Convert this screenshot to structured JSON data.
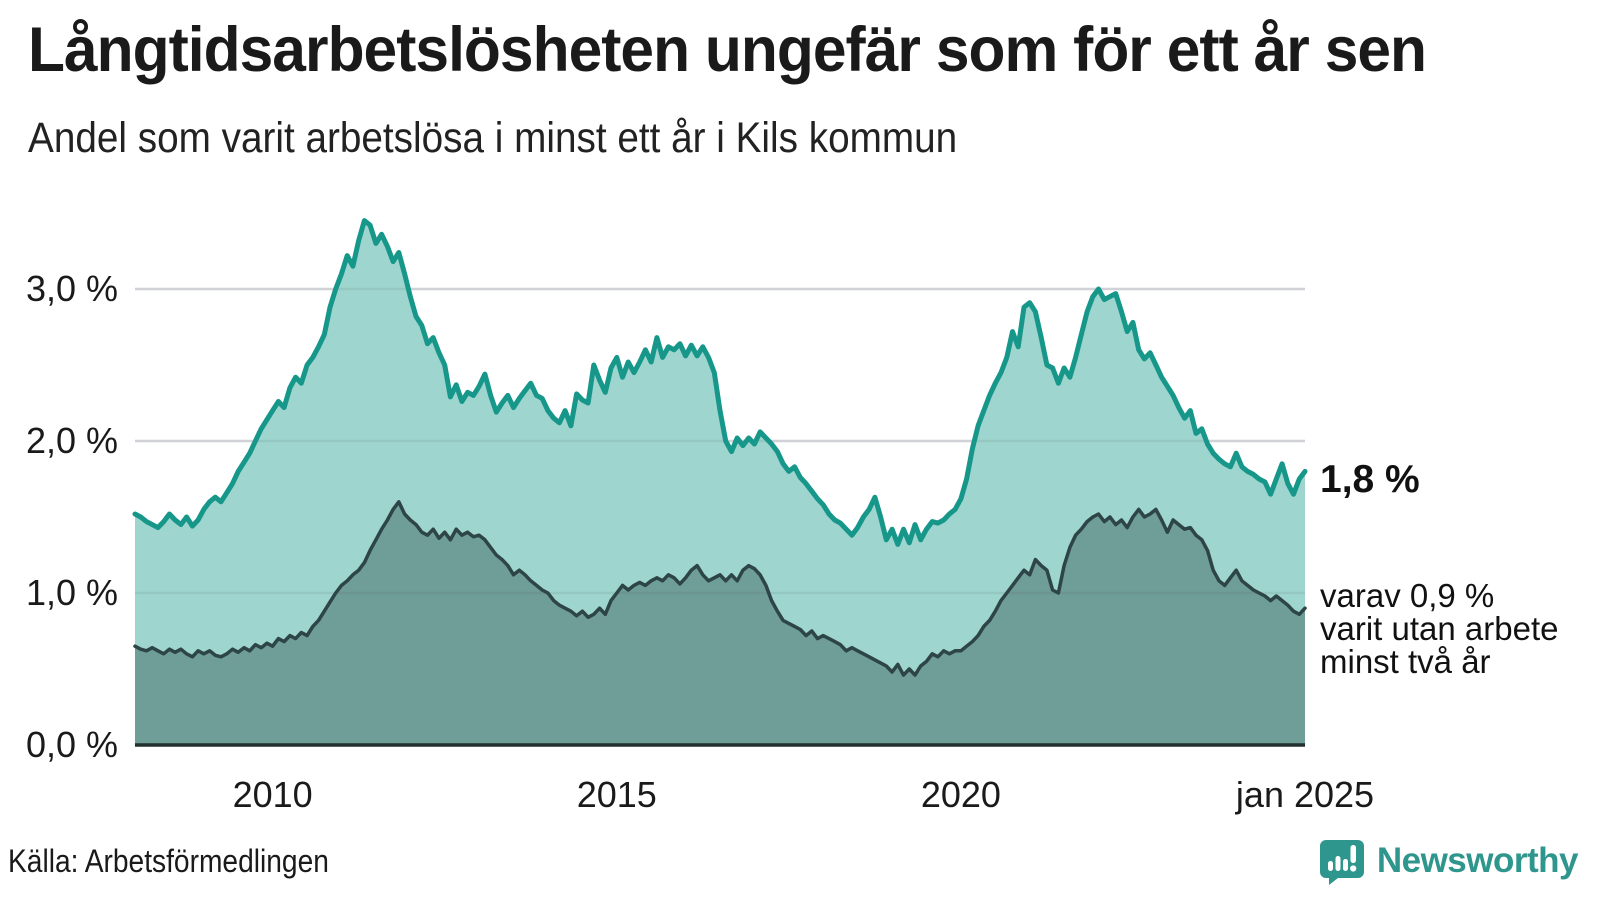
{
  "header": {
    "title": "Långtidsarbetslösheten ungefär som för ett år sen",
    "subtitle": "Andel som varit arbetslösa i minst ett år i Kils kommun"
  },
  "chart_data": {
    "type": "area",
    "title": "Långtidsarbetslösheten ungefär som för ett år sen",
    "subtitle": "Andel som varit arbetslösa i minst ett år i Kils kommun",
    "unit": "%",
    "x_start": "2008-01",
    "x_end": "2025-01",
    "x_interval": "monthly",
    "ylim": [
      0,
      3.5
    ],
    "grid": "horizontal",
    "yticks": [
      {
        "label": "0,0 %",
        "value": 0.0
      },
      {
        "label": "1,0 %",
        "value": 1.0
      },
      {
        "label": "2,0 %",
        "value": 2.0
      },
      {
        "label": "3,0 %",
        "value": 3.0
      }
    ],
    "xticks": [
      {
        "label": "2010",
        "month_index": 24
      },
      {
        "label": "2015",
        "month_index": 84
      },
      {
        "label": "2020",
        "month_index": 144
      },
      {
        "label": "jan 2025",
        "month_index": 204
      }
    ],
    "series": [
      {
        "name": "Andel som varit arbetslösa minst ett år",
        "line_color": "#17978a",
        "fill_color": "#9ed5ce",
        "line_width": 5,
        "values": [
          1.52,
          1.5,
          1.47,
          1.45,
          1.43,
          1.47,
          1.52,
          1.48,
          1.45,
          1.5,
          1.44,
          1.48,
          1.55,
          1.6,
          1.63,
          1.6,
          1.66,
          1.72,
          1.8,
          1.86,
          1.92,
          2.0,
          2.08,
          2.14,
          2.2,
          2.26,
          2.22,
          2.35,
          2.42,
          2.38,
          2.5,
          2.55,
          2.62,
          2.7,
          2.88,
          3.0,
          3.1,
          3.22,
          3.15,
          3.32,
          3.45,
          3.42,
          3.3,
          3.36,
          3.28,
          3.18,
          3.24,
          3.1,
          2.95,
          2.82,
          2.76,
          2.64,
          2.68,
          2.58,
          2.5,
          2.29,
          2.37,
          2.26,
          2.32,
          2.3,
          2.36,
          2.44,
          2.3,
          2.19,
          2.25,
          2.3,
          2.22,
          2.28,
          2.33,
          2.38,
          2.3,
          2.28,
          2.2,
          2.15,
          2.12,
          2.2,
          2.1,
          2.31,
          2.27,
          2.25,
          2.5,
          2.4,
          2.32,
          2.48,
          2.55,
          2.42,
          2.52,
          2.45,
          2.52,
          2.6,
          2.52,
          2.68,
          2.55,
          2.62,
          2.6,
          2.64,
          2.56,
          2.63,
          2.56,
          2.62,
          2.55,
          2.45,
          2.2,
          2.0,
          1.93,
          2.02,
          1.97,
          2.02,
          1.98,
          2.06,
          2.02,
          1.98,
          1.93,
          1.85,
          1.8,
          1.83,
          1.76,
          1.72,
          1.67,
          1.62,
          1.58,
          1.52,
          1.48,
          1.46,
          1.42,
          1.38,
          1.43,
          1.5,
          1.55,
          1.63,
          1.5,
          1.35,
          1.42,
          1.32,
          1.42,
          1.33,
          1.45,
          1.35,
          1.42,
          1.47,
          1.46,
          1.48,
          1.52,
          1.55,
          1.62,
          1.75,
          1.95,
          2.1,
          2.2,
          2.3,
          2.38,
          2.45,
          2.55,
          2.72,
          2.62,
          2.88,
          2.91,
          2.85,
          2.68,
          2.5,
          2.48,
          2.38,
          2.48,
          2.42,
          2.55,
          2.7,
          2.85,
          2.95,
          3.0,
          2.93,
          2.95,
          2.97,
          2.85,
          2.72,
          2.78,
          2.6,
          2.54,
          2.58,
          2.5,
          2.42,
          2.36,
          2.3,
          2.22,
          2.15,
          2.2,
          2.05,
          2.08,
          1.98,
          1.92,
          1.88,
          1.85,
          1.83,
          1.92,
          1.83,
          1.8,
          1.78,
          1.75,
          1.73,
          1.65,
          1.75,
          1.85,
          1.72,
          1.65,
          1.75,
          1.8
        ]
      },
      {
        "name": "varav utan arbete minst två år",
        "line_color": "#2e4547",
        "fill_color": "#6f9d97",
        "line_width": 3.5,
        "values": [
          0.65,
          0.63,
          0.62,
          0.64,
          0.62,
          0.6,
          0.63,
          0.61,
          0.63,
          0.6,
          0.58,
          0.62,
          0.6,
          0.62,
          0.59,
          0.58,
          0.6,
          0.63,
          0.61,
          0.64,
          0.62,
          0.66,
          0.64,
          0.67,
          0.65,
          0.7,
          0.68,
          0.72,
          0.7,
          0.74,
          0.72,
          0.78,
          0.82,
          0.88,
          0.94,
          1.0,
          1.05,
          1.08,
          1.12,
          1.15,
          1.2,
          1.28,
          1.35,
          1.42,
          1.48,
          1.55,
          1.6,
          1.52,
          1.48,
          1.45,
          1.4,
          1.38,
          1.42,
          1.36,
          1.4,
          1.35,
          1.42,
          1.38,
          1.4,
          1.37,
          1.38,
          1.35,
          1.3,
          1.25,
          1.22,
          1.18,
          1.12,
          1.15,
          1.12,
          1.08,
          1.05,
          1.02,
          1.0,
          0.95,
          0.92,
          0.9,
          0.88,
          0.85,
          0.88,
          0.84,
          0.86,
          0.9,
          0.86,
          0.95,
          1.0,
          1.05,
          1.02,
          1.05,
          1.07,
          1.05,
          1.08,
          1.1,
          1.08,
          1.12,
          1.1,
          1.06,
          1.1,
          1.15,
          1.18,
          1.12,
          1.08,
          1.1,
          1.12,
          1.08,
          1.12,
          1.08,
          1.15,
          1.18,
          1.16,
          1.12,
          1.05,
          0.95,
          0.88,
          0.82,
          0.8,
          0.78,
          0.76,
          0.72,
          0.75,
          0.7,
          0.72,
          0.7,
          0.68,
          0.66,
          0.62,
          0.64,
          0.62,
          0.6,
          0.58,
          0.56,
          0.54,
          0.52,
          0.48,
          0.53,
          0.46,
          0.5,
          0.46,
          0.52,
          0.55,
          0.6,
          0.58,
          0.62,
          0.6,
          0.62,
          0.62,
          0.65,
          0.68,
          0.72,
          0.78,
          0.82,
          0.88,
          0.95,
          1.0,
          1.05,
          1.1,
          1.15,
          1.12,
          1.22,
          1.18,
          1.15,
          1.02,
          1.0,
          1.18,
          1.3,
          1.38,
          1.42,
          1.47,
          1.5,
          1.52,
          1.47,
          1.5,
          1.45,
          1.48,
          1.43,
          1.5,
          1.55,
          1.5,
          1.52,
          1.55,
          1.48,
          1.4,
          1.48,
          1.45,
          1.42,
          1.43,
          1.38,
          1.35,
          1.28,
          1.15,
          1.08,
          1.05,
          1.1,
          1.15,
          1.08,
          1.05,
          1.02,
          1.0,
          0.98,
          0.95,
          0.98,
          0.95,
          0.92,
          0.88,
          0.86,
          0.9
        ]
      }
    ],
    "annotations": {
      "total_end_label": "1,8 %",
      "subset_end_label": [
        "varav 0,9 %",
        "varit utan arbete",
        "minst två år"
      ]
    }
  },
  "footer": {
    "source": "Källa: Arbetsförmedlingen",
    "brand": "Newsworthy"
  },
  "colors": {
    "line_total": "#17978a",
    "fill_total": "#9ed5ce",
    "line_subset": "#2e4547",
    "fill_subset": "#6f9d97",
    "gridline": "#e2e2e8",
    "axis": "#22302f",
    "brand_teal": "#2f968d"
  }
}
